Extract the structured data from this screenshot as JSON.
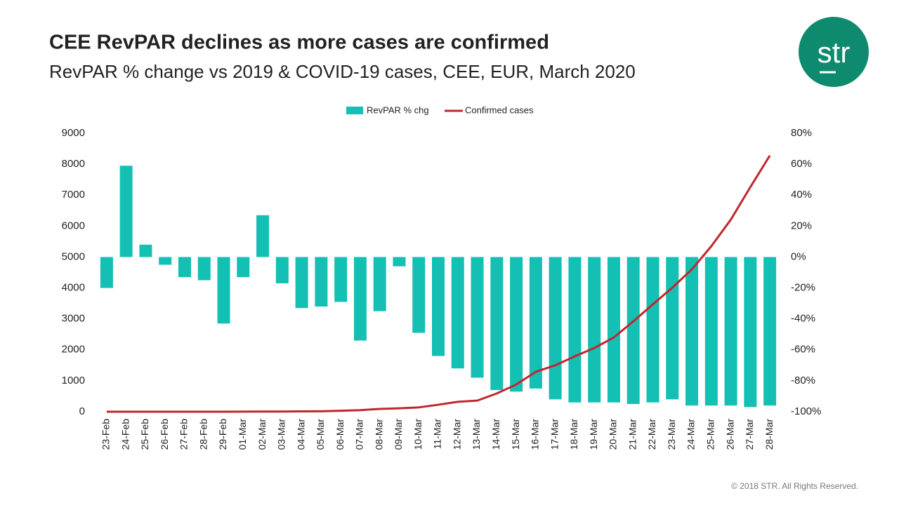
{
  "chart_data": {
    "type": "bar",
    "title": "CEE RevPAR declines as more cases are confirmed",
    "subtitle": "RevPAR % change vs 2019 & COVID-19 cases, CEE, EUR, March 2020",
    "categories": [
      "23-Feb",
      "24-Feb",
      "25-Feb",
      "26-Feb",
      "27-Feb",
      "28-Feb",
      "29-Feb",
      "01-Mar",
      "02-Mar",
      "03-Mar",
      "04-Mar",
      "05-Mar",
      "06-Mar",
      "07-Mar",
      "08-Mar",
      "09-Mar",
      "10-Mar",
      "11-Mar",
      "12-Mar",
      "13-Mar",
      "14-Mar",
      "15-Mar",
      "16-Mar",
      "17-Mar",
      "18-Mar",
      "19-Mar",
      "20-Mar",
      "21-Mar",
      "22-Mar",
      "23-Mar",
      "24-Mar",
      "25-Mar",
      "26-Mar",
      "27-Mar",
      "28-Mar"
    ],
    "series": [
      {
        "name": "RevPAR % chg",
        "color": "#14c0b3",
        "axis": "y2",
        "type": "bar",
        "values": [
          -20,
          59,
          8,
          -5,
          -13,
          -15,
          -43,
          -13,
          27,
          -17,
          -33,
          -32,
          -29,
          -54,
          -35,
          -6,
          -49,
          -64,
          -72,
          -78,
          -86,
          -87,
          -85,
          -92,
          -94,
          -94,
          -94,
          -95,
          -94,
          -92,
          -96,
          -96,
          -96,
          -97,
          -96
        ]
      },
      {
        "name": "Confirmed cases",
        "color": "#c0272d",
        "type": "line",
        "values": [
          0,
          0,
          0,
          0,
          0,
          0,
          0,
          3,
          5,
          5,
          10,
          15,
          30,
          50,
          90,
          110,
          140,
          225,
          320,
          360,
          590,
          880,
          1290,
          1500,
          1790,
          2060,
          2400,
          2920,
          3470,
          4010,
          4600,
          5350,
          6210,
          7260,
          8280
        ]
      }
    ],
    "ylim": [
      0,
      9000
    ],
    "yticks": [
      0,
      1000,
      2000,
      3000,
      4000,
      5000,
      6000,
      7000,
      8000,
      9000
    ],
    "y2lim": [
      -100,
      80
    ],
    "y2ticks": [
      {
        "value": -100,
        "label": "-100%"
      },
      {
        "value": -80,
        "label": "-80%"
      },
      {
        "value": -60,
        "label": "-60%"
      },
      {
        "value": -40,
        "label": "-40%"
      },
      {
        "value": -20,
        "label": "-20%"
      },
      {
        "value": 0,
        "label": "0%"
      },
      {
        "value": 20,
        "label": "20%"
      },
      {
        "value": 40,
        "label": "40%"
      },
      {
        "value": 60,
        "label": "60%"
      },
      {
        "value": 80,
        "label": "80%"
      }
    ],
    "legend": "top",
    "grid": false
  },
  "logo": "str",
  "footer": "© 2018 STR. All Rights Reserved."
}
